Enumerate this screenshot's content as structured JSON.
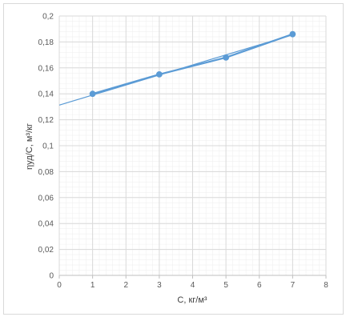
{
  "chart_data": {
    "type": "scatter",
    "title": "",
    "xlabel": "C, кг/м³",
    "ylabel": "ηуд/C, м³/кг",
    "xlim": [
      0,
      8
    ],
    "ylim": [
      0,
      0.2
    ],
    "x_ticks": [
      "0",
      "1",
      "2",
      "3",
      "4",
      "5",
      "6",
      "7",
      "8"
    ],
    "y_ticks": [
      "0",
      "0,02",
      "0,04",
      "0,06",
      "0,08",
      "0,1",
      "0,12",
      "0,14",
      "0,16",
      "0,18",
      "0,2"
    ],
    "grid": true,
    "minor_grid": true,
    "legend": "none",
    "colors": {
      "series": "#5b9bd5",
      "major_grid": "#d9d9d9",
      "minor_grid": "#f0f0f0"
    },
    "series": [
      {
        "x": [
          1,
          3,
          5,
          7
        ],
        "y": [
          0.14,
          0.155,
          0.168,
          0.186
        ],
        "style": "line-with-markers"
      }
    ],
    "trendline": {
      "type": "linear",
      "x": [
        0,
        7
      ],
      "y": [
        0.1313,
        0.1855
      ]
    }
  }
}
